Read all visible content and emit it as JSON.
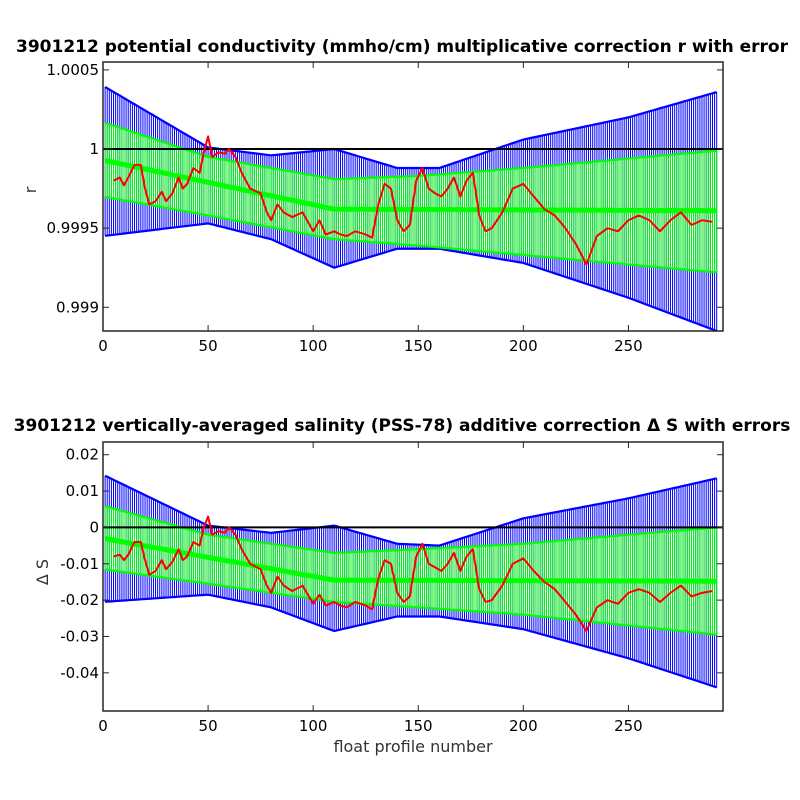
{
  "chart_data": [
    {
      "type": "line",
      "title": "3901212 potential conductivity (mmho/cm) multiplicative correction r with error",
      "xlabel": "",
      "ylabel": "r",
      "xlim": [
        0,
        295
      ],
      "ylim": [
        0.99885,
        1.00055
      ],
      "xticks": [
        0,
        50,
        100,
        150,
        200,
        250
      ],
      "xtick_labels": [
        "0",
        "50",
        "100",
        "150",
        "200",
        "250"
      ],
      "yticks": [
        0.999,
        0.9995,
        1,
        1.0005
      ],
      "ytick_labels": [
        "0.999",
        "0.9995",
        "1",
        "1.0005"
      ],
      "reference_line": 1,
      "colors": {
        "outer_error": "#0000ff",
        "inner_error": "#00ff00",
        "fit": "#00ff00",
        "profile": "#ff0000",
        "reference": "#000000"
      },
      "series": [
        {
          "name": "",
          "role": "outer_upper_error",
          "x": [
            0,
            50,
            80,
            110,
            140,
            160,
            200,
            250,
            292
          ],
          "y": [
            1.0004,
            1.00001,
            0.99996,
            1.0,
            0.99988,
            0.99988,
            1.00006,
            1.0002,
            1.00036
          ]
        },
        {
          "name": "",
          "role": "outer_lower_error",
          "x": [
            0,
            50,
            80,
            110,
            140,
            160,
            200,
            250,
            292
          ],
          "y": [
            0.99945,
            0.99953,
            0.99943,
            0.99925,
            0.99937,
            0.99937,
            0.99928,
            0.99906,
            0.99885
          ]
        },
        {
          "name": "",
          "role": "inner_upper_error",
          "x": [
            0,
            50,
            110,
            150,
            200,
            250,
            292
          ],
          "y": [
            1.00017,
            0.99995,
            0.99981,
            0.99983,
            0.99988,
            0.99994,
            0.99999
          ]
        },
        {
          "name": "",
          "role": "inner_lower_error",
          "x": [
            0,
            50,
            110,
            150,
            200,
            250,
            292
          ],
          "y": [
            0.9997,
            0.99958,
            0.99943,
            0.99939,
            0.99933,
            0.99927,
            0.99922
          ]
        },
        {
          "name": "",
          "role": "fit",
          "x": [
            0,
            110,
            292
          ],
          "y": [
            0.99993,
            0.99962,
            0.99961
          ]
        },
        {
          "name": "",
          "role": "profile",
          "x": [
            5,
            8,
            10,
            12,
            15,
            18,
            20,
            22,
            25,
            28,
            30,
            33,
            36,
            38,
            40,
            43,
            46,
            48,
            50,
            52,
            55,
            58,
            60,
            63,
            66,
            70,
            75,
            78,
            80,
            83,
            86,
            90,
            95,
            100,
            103,
            106,
            110,
            113,
            116,
            120,
            125,
            128,
            131,
            134,
            137,
            140,
            143,
            146,
            149,
            152,
            155,
            158,
            161,
            164,
            167,
            170,
            173,
            176,
            179,
            182,
            185,
            190,
            195,
            200,
            205,
            210,
            215,
            220,
            225,
            230,
            235,
            240,
            245,
            250,
            255,
            260,
            265,
            270,
            275,
            280,
            285,
            290
          ],
          "y": [
            0.9998,
            0.99982,
            0.99977,
            0.99982,
            0.9999,
            0.9999,
            0.99975,
            0.99965,
            0.99967,
            0.99973,
            0.99967,
            0.99972,
            0.99982,
            0.99975,
            0.99978,
            0.99988,
            0.99985,
            0.99998,
            1.00008,
            0.99995,
            0.99998,
            0.99997,
            1.0,
            0.99995,
            0.99985,
            0.99975,
            0.99972,
            0.9996,
            0.99955,
            0.99965,
            0.9996,
            0.99957,
            0.9996,
            0.99948,
            0.99955,
            0.99946,
            0.99948,
            0.99946,
            0.99945,
            0.99948,
            0.99946,
            0.99944,
            0.99965,
            0.99978,
            0.99975,
            0.99955,
            0.99948,
            0.99952,
            0.9998,
            0.99988,
            0.99975,
            0.99972,
            0.9997,
            0.99975,
            0.99982,
            0.9997,
            0.9998,
            0.99985,
            0.99958,
            0.99948,
            0.9995,
            0.9996,
            0.99975,
            0.99978,
            0.9997,
            0.99962,
            0.99958,
            0.9995,
            0.9994,
            0.99927,
            0.99945,
            0.9995,
            0.99948,
            0.99955,
            0.99958,
            0.99955,
            0.99948,
            0.99955,
            0.9996,
            0.99952,
            0.99955,
            0.99954
          ]
        }
      ]
    },
    {
      "type": "line",
      "title": "3901212 vertically-averaged salinity (PSS-78) additive correction Δ S with errors",
      "xlabel": "float profile number",
      "ylabel": "Δ S",
      "xlim": [
        0,
        295
      ],
      "ylim": [
        -0.0505,
        0.0235
      ],
      "xticks": [
        0,
        50,
        100,
        150,
        200,
        250
      ],
      "xtick_labels": [
        "0",
        "50",
        "100",
        "150",
        "200",
        "250"
      ],
      "yticks": [
        -0.04,
        -0.03,
        -0.02,
        -0.01,
        0,
        0.01,
        0.02
      ],
      "ytick_labels": [
        "-0.04",
        "-0.03",
        "-0.02",
        "-0.01",
        "0",
        "0.01",
        "0.02"
      ],
      "reference_line": 0,
      "colors": {
        "outer_error": "#0000ff",
        "inner_error": "#00ff00",
        "fit": "#00ff00",
        "profile": "#ff0000",
        "reference": "#000000"
      },
      "series": [
        {
          "name": "",
          "role": "outer_upper_error",
          "x": [
            0,
            50,
            80,
            110,
            140,
            160,
            200,
            250,
            292
          ],
          "y": [
            0.0145,
            0.0005,
            -0.0015,
            0.0005,
            -0.0045,
            -0.005,
            0.0025,
            0.008,
            0.0135
          ]
        },
        {
          "name": "",
          "role": "outer_lower_error",
          "x": [
            0,
            50,
            80,
            110,
            140,
            160,
            200,
            250,
            292
          ],
          "y": [
            -0.0205,
            -0.0185,
            -0.022,
            -0.0285,
            -0.0245,
            -0.0245,
            -0.028,
            -0.036,
            -0.044
          ]
        },
        {
          "name": "",
          "role": "inner_upper_error",
          "x": [
            0,
            50,
            110,
            150,
            200,
            250,
            292
          ],
          "y": [
            0.006,
            -0.002,
            -0.007,
            -0.006,
            -0.0045,
            -0.002,
            0.0
          ]
        },
        {
          "name": "",
          "role": "inner_lower_error",
          "x": [
            0,
            50,
            110,
            150,
            200,
            250,
            292
          ],
          "y": [
            -0.0115,
            -0.0155,
            -0.0205,
            -0.022,
            -0.024,
            -0.027,
            -0.0295
          ]
        },
        {
          "name": "",
          "role": "fit",
          "x": [
            0,
            110,
            292
          ],
          "y": [
            -0.003,
            -0.0145,
            -0.0148
          ]
        },
        {
          "name": "",
          "role": "profile",
          "x": [
            5,
            8,
            10,
            12,
            15,
            18,
            20,
            22,
            25,
            28,
            30,
            33,
            36,
            38,
            40,
            43,
            46,
            48,
            50,
            52,
            55,
            58,
            60,
            63,
            66,
            70,
            75,
            78,
            80,
            83,
            86,
            90,
            95,
            100,
            103,
            106,
            110,
            113,
            116,
            120,
            125,
            128,
            131,
            134,
            137,
            140,
            143,
            146,
            149,
            152,
            155,
            158,
            161,
            164,
            167,
            170,
            173,
            176,
            179,
            182,
            185,
            190,
            195,
            200,
            205,
            210,
            215,
            220,
            225,
            230,
            235,
            240,
            245,
            250,
            255,
            260,
            265,
            270,
            275,
            280,
            285,
            290
          ],
          "y": [
            -0.008,
            -0.0075,
            -0.009,
            -0.0075,
            -0.004,
            -0.004,
            -0.009,
            -0.013,
            -0.012,
            -0.009,
            -0.0115,
            -0.0095,
            -0.006,
            -0.009,
            -0.008,
            -0.004,
            -0.005,
            0.0,
            0.003,
            -0.002,
            -0.001,
            -0.0015,
            0.0,
            -0.002,
            -0.006,
            -0.01,
            -0.0115,
            -0.016,
            -0.018,
            -0.0135,
            -0.016,
            -0.0175,
            -0.016,
            -0.021,
            -0.0185,
            -0.0215,
            -0.0205,
            -0.0215,
            -0.022,
            -0.0205,
            -0.0215,
            -0.0225,
            -0.014,
            -0.009,
            -0.01,
            -0.018,
            -0.0205,
            -0.019,
            -0.008,
            -0.0045,
            -0.01,
            -0.011,
            -0.012,
            -0.01,
            -0.007,
            -0.012,
            -0.008,
            -0.006,
            -0.017,
            -0.0205,
            -0.02,
            -0.016,
            -0.01,
            -0.0085,
            -0.012,
            -0.015,
            -0.017,
            -0.0205,
            -0.024,
            -0.0285,
            -0.022,
            -0.02,
            -0.021,
            -0.018,
            -0.017,
            -0.018,
            -0.0205,
            -0.018,
            -0.016,
            -0.019,
            -0.018,
            -0.0175
          ]
        }
      ]
    }
  ]
}
